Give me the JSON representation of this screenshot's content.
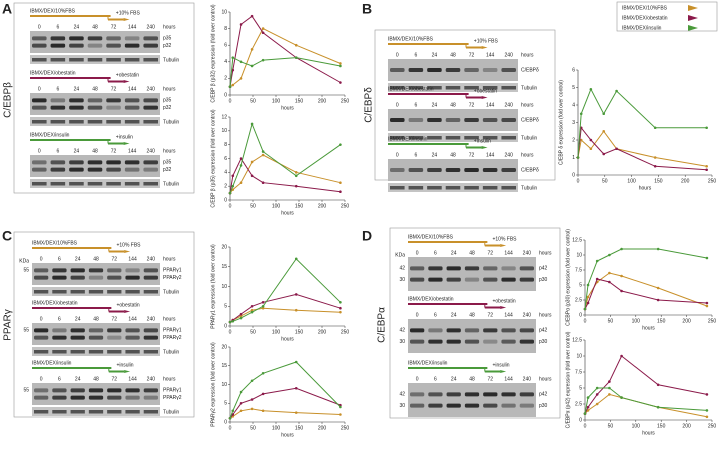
{
  "legend": [
    {
      "name": "IBMX/DEX/10%FBS",
      "color": "#c8902a"
    },
    {
      "name": "IBMX/DEX/obestatin",
      "color": "#8b1a4a"
    },
    {
      "name": "IBMX/DEX/insulin",
      "color": "#4a9a3a"
    }
  ],
  "blots": [
    {
      "letter": "A",
      "protein": "C/EBPβ",
      "times": [
        "0",
        "6",
        "24",
        "48",
        "72",
        "144",
        "240"
      ],
      "unit": "hours",
      "groups": [
        {
          "treatment": "IBMX/DEX/10%FBS",
          "addition": "+10% FBS",
          "bands": [
            "p35",
            "p32"
          ],
          "loading": "Tubulin"
        },
        {
          "treatment": "IBMX/DEX/obestatin",
          "addition": "+obestatin",
          "bands": [
            "p35",
            "p32"
          ],
          "loading": "Tubulin"
        },
        {
          "treatment": "IBMX/DEX/insulin",
          "addition": "+insulin",
          "bands": [
            "p35",
            "p32"
          ],
          "loading": "Tubulin"
        }
      ]
    },
    {
      "letter": "B",
      "protein": "C/EBPδ",
      "times": [
        "0",
        "6",
        "24",
        "48",
        "72",
        "144",
        "240"
      ],
      "unit": "hours",
      "groups": [
        {
          "treatment": "IBMX/DEX/10%FBS",
          "addition": "+10% FBS",
          "bands": [
            "C/EBPδ"
          ],
          "loading": "Tubulin"
        },
        {
          "treatment": "IBMX/DEX/obestatin",
          "addition": "+obestatin",
          "bands": [
            "C/EBPδ"
          ],
          "loading": "Tubulin"
        },
        {
          "treatment": "IBMX/DEX/insulin",
          "addition": "+insulin",
          "bands": [
            "C/EBPδ"
          ],
          "loading": "Tubulin"
        }
      ]
    },
    {
      "letter": "C",
      "protein": "PPARγ",
      "times": [
        "0",
        "6",
        "24",
        "48",
        "72",
        "144",
        "240"
      ],
      "unit": "hours",
      "kda": "KDa",
      "groups": [
        {
          "treatment": "IBMX/DEX/10%FBS",
          "addition": "+10% FBS",
          "bands": [
            "PPARγ1",
            "PPARγ2"
          ],
          "markers": [
            "55"
          ],
          "loading": "Tubulin"
        },
        {
          "treatment": "IBMX/DEX/obestatin",
          "addition": "+obestatin",
          "bands": [
            "PPARγ1",
            "PPARγ2"
          ],
          "markers": [
            "55"
          ],
          "loading": "Tubulin"
        },
        {
          "treatment": "IBMX/DEX/insulin",
          "addition": "+insulin",
          "bands": [
            "PPARγ1",
            "PPARγ2"
          ],
          "markers": [
            "55"
          ],
          "loading": "Tubulin"
        }
      ]
    },
    {
      "letter": "D",
      "protein": "C/EBPα",
      "times": [
        "0",
        "6",
        "24",
        "48",
        "72",
        "144",
        "240"
      ],
      "unit": "hours",
      "kda": "KDa",
      "groups": [
        {
          "treatment": "IBMX/DEX/10%FBS",
          "addition": "+10% FBS",
          "bands": [
            "p42",
            "p30"
          ],
          "markers": [
            "42",
            "30"
          ]
        },
        {
          "treatment": "IBMX/DEX/obestatin",
          "addition": "+obestatin",
          "bands": [
            "p42",
            "p30"
          ],
          "markers": [
            "42",
            "30"
          ]
        },
        {
          "treatment": "IBMX/DEX/insulin",
          "addition": "+insulin",
          "bands": [
            "p42",
            "p30"
          ],
          "markers": [
            "42",
            "30"
          ]
        }
      ]
    }
  ],
  "chart_data": [
    {
      "type": "line",
      "y_label": "C/EBP β (p32) expression (fold over control)",
      "x_label": "hours",
      "x": [
        0,
        6,
        24,
        48,
        72,
        144,
        240
      ],
      "xlim": [
        0,
        250
      ],
      "xticks": [
        0,
        50,
        100,
        150,
        200,
        250
      ],
      "ylim": [
        0,
        10
      ],
      "yticks": [
        0,
        2,
        4,
        6,
        8,
        10
      ],
      "series": [
        {
          "values": [
            1,
            1.2,
            2,
            5.5,
            8,
            6,
            3.8
          ]
        },
        {
          "values": [
            1,
            3,
            8.5,
            9.5,
            7.5,
            4.5,
            1.5
          ]
        },
        {
          "values": [
            1,
            4.5,
            4,
            3.5,
            4.2,
            4.5,
            3.5
          ]
        }
      ]
    },
    {
      "type": "line",
      "y_label": "C/EBP β (p35) expression (fold over control)",
      "x_label": "hours",
      "x": [
        0,
        6,
        24,
        48,
        72,
        144,
        240
      ],
      "xlim": [
        0,
        250
      ],
      "xticks": [
        0,
        50,
        100,
        150,
        200,
        250
      ],
      "ylim": [
        0,
        12
      ],
      "yticks": [
        0,
        2,
        4,
        6,
        8,
        10,
        12
      ],
      "series": [
        {
          "values": [
            1,
            1.5,
            2.5,
            5.5,
            6.5,
            4,
            2.5
          ]
        },
        {
          "values": [
            1,
            3.5,
            6,
            3.5,
            2.5,
            2,
            1.2
          ]
        },
        {
          "values": [
            1,
            2,
            5,
            11,
            7,
            3.5,
            8
          ]
        }
      ]
    },
    {
      "type": "line",
      "y_label": "C/EBP δ expression (fold over control)",
      "x_label": "hours",
      "x": [
        0,
        6,
        24,
        48,
        72,
        144,
        240
      ],
      "xlim": [
        0,
        250
      ],
      "xticks": [
        0,
        50,
        100,
        150,
        200,
        250
      ],
      "ylim": [
        0,
        6
      ],
      "yticks": [
        0,
        1,
        2,
        3,
        4,
        5,
        6
      ],
      "series": [
        {
          "values": [
            1,
            2,
            1.5,
            2.5,
            1.5,
            1,
            0.5
          ]
        },
        {
          "values": [
            1,
            2.7,
            2,
            1.2,
            1.5,
            0.5,
            0.3
          ]
        },
        {
          "values": [
            1,
            3.5,
            4.9,
            3.5,
            4.8,
            2.7,
            2.7
          ]
        }
      ]
    },
    {
      "type": "line",
      "y_label": "PPARγ1 expression (fold over control)",
      "x_label": "hours",
      "x": [
        0,
        6,
        24,
        48,
        72,
        144,
        240
      ],
      "xlim": [
        0,
        250
      ],
      "xticks": [
        0,
        50,
        100,
        150,
        200,
        250
      ],
      "ylim": [
        0,
        20
      ],
      "yticks": [
        0,
        5,
        10,
        15,
        20
      ],
      "series": [
        {
          "values": [
            1,
            1.5,
            2.5,
            4,
            4.5,
            4,
            3.5
          ]
        },
        {
          "values": [
            1,
            1.5,
            3,
            5,
            6,
            8,
            4.5
          ]
        },
        {
          "values": [
            1,
            1.2,
            2,
            3.5,
            5,
            17,
            6
          ]
        }
      ]
    },
    {
      "type": "line",
      "y_label": "PPARγ2 expression (fold over control)",
      "x_label": "hours",
      "x": [
        0,
        6,
        24,
        48,
        72,
        144,
        240
      ],
      "xlim": [
        0,
        250
      ],
      "xticks": [
        0,
        50,
        100,
        150,
        200,
        250
      ],
      "ylim": [
        0,
        20
      ],
      "yticks": [
        0,
        5,
        10,
        15,
        20
      ],
      "series": [
        {
          "values": [
            1,
            1.5,
            3,
            3.5,
            3,
            2.5,
            2
          ]
        },
        {
          "values": [
            1,
            2,
            5,
            6,
            7.5,
            9,
            4.5
          ]
        },
        {
          "values": [
            1,
            3,
            8,
            11,
            13,
            16,
            4
          ]
        }
      ]
    },
    {
      "type": "line",
      "y_label": "C/EBPα (p30) expression (fold over control)",
      "x_label": "hours",
      "x": [
        0,
        6,
        24,
        48,
        72,
        144,
        240
      ],
      "xlim": [
        0,
        250
      ],
      "xticks": [
        0,
        50,
        100,
        150,
        200,
        250
      ],
      "ylim": [
        0,
        12.5
      ],
      "yticks": [
        0,
        2.5,
        5,
        7.5,
        10,
        12.5
      ],
      "series": [
        {
          "values": [
            1,
            3,
            5.5,
            7,
            6.5,
            4.5,
            1.5
          ]
        },
        {
          "values": [
            1,
            2,
            6,
            5.5,
            4,
            2.5,
            2
          ]
        },
        {
          "values": [
            1,
            5,
            9,
            10,
            11,
            11,
            9.5
          ]
        }
      ]
    },
    {
      "type": "line",
      "y_label": "C/EBPα (p42) expression (fold over control)",
      "x_label": "hours",
      "x": [
        0,
        6,
        24,
        48,
        72,
        144,
        240
      ],
      "xlim": [
        0,
        250
      ],
      "xticks": [
        0,
        50,
        100,
        150,
        200,
        250
      ],
      "ylim": [
        0,
        12.5
      ],
      "yticks": [
        0,
        2.5,
        5,
        7.5,
        10,
        12.5
      ],
      "series": [
        {
          "values": [
            1,
            1.5,
            2.5,
            4,
            3.5,
            2,
            0.5
          ]
        },
        {
          "values": [
            1,
            2,
            4,
            6,
            10,
            5.5,
            4
          ]
        },
        {
          "values": [
            1,
            3.5,
            5,
            5,
            3.5,
            2,
            1.5
          ]
        }
      ]
    }
  ]
}
